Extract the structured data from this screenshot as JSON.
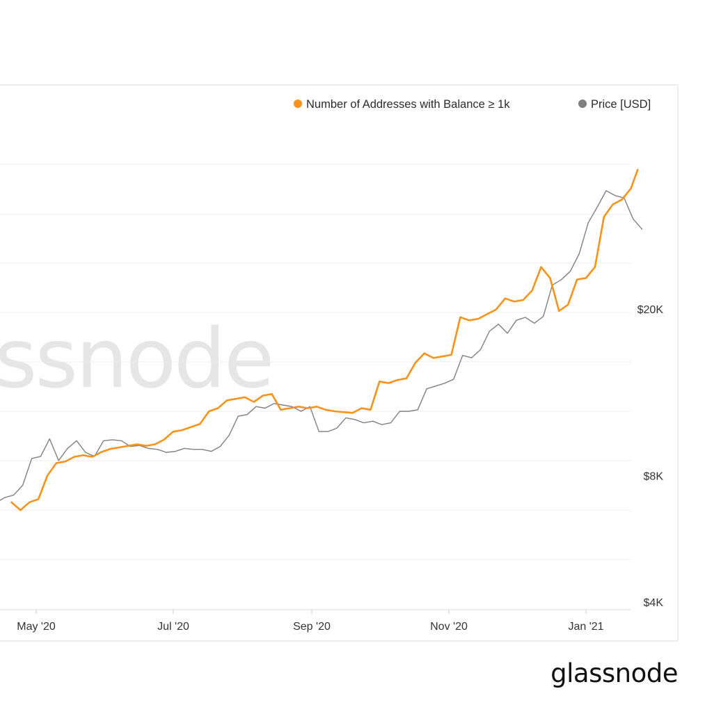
{
  "brand": {
    "logo_text": "glassnode",
    "watermark_text": "ssnode"
  },
  "chart_data": {
    "type": "line",
    "title": "",
    "xlabel": "",
    "ylabel": "",
    "x_ticks": [
      "May '20",
      "Jul '20",
      "Sep '20",
      "Nov '20",
      "Jan '21"
    ],
    "x_range": [
      "2020-04-01",
      "2021-01-27"
    ],
    "y_right": {
      "scale": "log",
      "ticks": [
        "$20K",
        "$8K",
        "$4K"
      ],
      "tick_values": [
        20000,
        8000,
        4000
      ]
    },
    "grid": "horizontal",
    "legend_position": "top-right",
    "series": [
      {
        "name": "Number of Addresses with Balance ≥ 1k",
        "color": "#f7931a",
        "axis": "left",
        "x": [
          "2020-04-20",
          "2020-04-24",
          "2020-04-28",
          "2020-05-02",
          "2020-05-06",
          "2020-05-10",
          "2020-05-14",
          "2020-05-18",
          "2020-05-22",
          "2020-05-26",
          "2020-05-30",
          "2020-06-03",
          "2020-06-07",
          "2020-06-11",
          "2020-06-15",
          "2020-06-19",
          "2020-06-23",
          "2020-06-27",
          "2020-07-01",
          "2020-07-05",
          "2020-07-09",
          "2020-07-13",
          "2020-07-17",
          "2020-07-21",
          "2020-07-25",
          "2020-07-29",
          "2020-08-02",
          "2020-08-06",
          "2020-08-10",
          "2020-08-14",
          "2020-08-18",
          "2020-08-22",
          "2020-08-26",
          "2020-08-30",
          "2020-09-03",
          "2020-09-07",
          "2020-09-11",
          "2020-09-15",
          "2020-09-19",
          "2020-09-23",
          "2020-09-27",
          "2020-10-01",
          "2020-10-05",
          "2020-10-09",
          "2020-10-13",
          "2020-10-17",
          "2020-10-21",
          "2020-10-25",
          "2020-10-29",
          "2020-11-02",
          "2020-11-06",
          "2020-11-10",
          "2020-11-14",
          "2020-11-18",
          "2020-11-22",
          "2020-11-26",
          "2020-11-30",
          "2020-12-04",
          "2020-12-08",
          "2020-12-12",
          "2020-12-16",
          "2020-12-20",
          "2020-12-24",
          "2020-12-28",
          "2021-01-01",
          "2021-01-05",
          "2021-01-09",
          "2021-01-13",
          "2021-01-17",
          "2021-01-21",
          "2021-01-24"
        ],
        "values": [
          68700,
          68650,
          68700,
          68720,
          68870,
          68950,
          68960,
          68990,
          69000,
          68990,
          69020,
          69040,
          69050,
          69060,
          69070,
          69060,
          69070,
          69100,
          69150,
          69160,
          69180,
          69200,
          69280,
          69300,
          69350,
          69360,
          69370,
          69340,
          69380,
          69390,
          69290,
          69300,
          69310,
          69300,
          69310,
          69290,
          69280,
          69275,
          69270,
          69300,
          69290,
          69470,
          69460,
          69480,
          69490,
          69590,
          69650,
          69620,
          69630,
          69640,
          69880,
          69860,
          69870,
          69900,
          69930,
          70000,
          69980,
          69990,
          70050,
          70200,
          70130,
          69920,
          69960,
          70120,
          70130,
          70200,
          70520,
          70600,
          70630,
          70700,
          70820
        ]
      },
      {
        "name": "Price [USD]",
        "color": "#808080",
        "axis": "right",
        "x": [
          "2020-04-01",
          "2020-04-05",
          "2020-04-09",
          "2020-04-13",
          "2020-04-17",
          "2020-04-21",
          "2020-04-25",
          "2020-04-29",
          "2020-05-03",
          "2020-05-07",
          "2020-05-11",
          "2020-05-15",
          "2020-05-19",
          "2020-05-23",
          "2020-05-27",
          "2020-05-31",
          "2020-06-04",
          "2020-06-08",
          "2020-06-12",
          "2020-06-16",
          "2020-06-20",
          "2020-06-24",
          "2020-06-28",
          "2020-07-02",
          "2020-07-06",
          "2020-07-10",
          "2020-07-14",
          "2020-07-18",
          "2020-07-22",
          "2020-07-26",
          "2020-07-30",
          "2020-08-03",
          "2020-08-07",
          "2020-08-11",
          "2020-08-15",
          "2020-08-19",
          "2020-08-23",
          "2020-08-27",
          "2020-08-31",
          "2020-09-04",
          "2020-09-08",
          "2020-09-12",
          "2020-09-16",
          "2020-09-20",
          "2020-09-24",
          "2020-09-28",
          "2020-10-02",
          "2020-10-06",
          "2020-10-10",
          "2020-10-14",
          "2020-10-18",
          "2020-10-22",
          "2020-10-26",
          "2020-10-30",
          "2020-11-03",
          "2020-11-07",
          "2020-11-11",
          "2020-11-15",
          "2020-11-19",
          "2020-11-23",
          "2020-11-27",
          "2020-12-01",
          "2020-12-05",
          "2020-12-09",
          "2020-12-13",
          "2020-12-17",
          "2020-12-21",
          "2020-12-25",
          "2020-12-29",
          "2021-01-02",
          "2021-01-06",
          "2021-01-10",
          "2021-01-14",
          "2021-01-18",
          "2021-01-22",
          "2021-01-26"
        ],
        "values": [
          6600,
          6800,
          7300,
          6900,
          7100,
          7200,
          7600,
          8800,
          8900,
          9800,
          8700,
          9300,
          9700,
          9100,
          8900,
          9700,
          9750,
          9700,
          9400,
          9450,
          9300,
          9250,
          9100,
          9150,
          9300,
          9250,
          9250,
          9150,
          9400,
          10000,
          11100,
          11200,
          11700,
          11600,
          11900,
          11800,
          11700,
          11400,
          11700,
          10200,
          10200,
          10400,
          11000,
          10900,
          10700,
          10800,
          10600,
          10700,
          11400,
          11400,
          11500,
          12900,
          13100,
          13300,
          13600,
          15500,
          15300,
          16000,
          17700,
          18400,
          17500,
          18800,
          19100,
          18500,
          19200,
          22800,
          23500,
          24600,
          27100,
          32100,
          35000,
          38300,
          37300,
          36800,
          32800,
          31000
        ]
      }
    ]
  }
}
